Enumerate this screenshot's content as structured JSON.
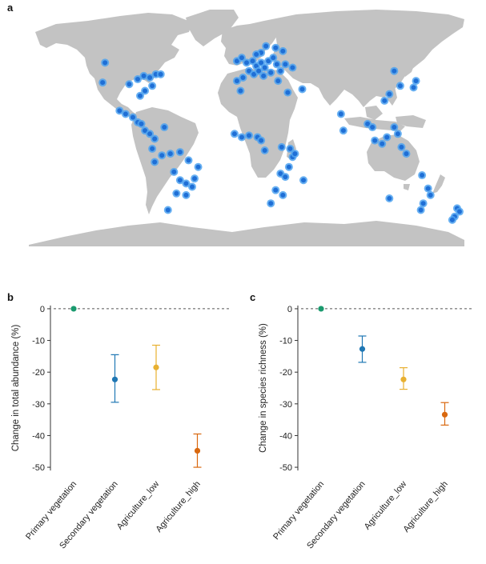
{
  "figure": {
    "panel_a_label": "a",
    "panel_b_label": "b",
    "panel_c_label": "c"
  },
  "colors": {
    "land": "#c3c3c3",
    "site_fill": "#1f6fd6",
    "site_halo": "#4fa3f0",
    "primary": "#1a9a6e",
    "secondary": "#1f77b4",
    "agri_low": "#e8b030",
    "agri_high": "#d9680f",
    "zero_line": "#555555"
  },
  "map": {
    "title": "",
    "sites": [
      [
        -117,
        51
      ],
      [
        -119,
        39
      ],
      [
        -97,
        38
      ],
      [
        -90,
        41
      ],
      [
        -85,
        43
      ],
      [
        -80,
        42
      ],
      [
        -75,
        44
      ],
      [
        -71,
        44
      ],
      [
        -78,
        37
      ],
      [
        -84,
        34
      ],
      [
        -88,
        31
      ],
      [
        -105,
        22
      ],
      [
        -100,
        20
      ],
      [
        -94,
        18
      ],
      [
        -90,
        15
      ],
      [
        -87,
        14
      ],
      [
        -84,
        10
      ],
      [
        -80,
        8
      ],
      [
        -76,
        5
      ],
      [
        -68,
        12
      ],
      [
        -78,
        -1
      ],
      [
        -76,
        -9
      ],
      [
        -70,
        -5
      ],
      [
        -63,
        -4
      ],
      [
        -55,
        -3
      ],
      [
        -48,
        -8
      ],
      [
        -40,
        -12
      ],
      [
        -60,
        -15
      ],
      [
        -55,
        -20
      ],
      [
        -50,
        -22
      ],
      [
        -45,
        -24
      ],
      [
        -58,
        -28
      ],
      [
        -65,
        -38
      ],
      [
        -50,
        -29
      ],
      [
        -43,
        -19
      ],
      [
        -8,
        52
      ],
      [
        -4,
        54
      ],
      [
        0,
        51
      ],
      [
        5,
        52
      ],
      [
        8,
        49
      ],
      [
        12,
        51
      ],
      [
        15,
        48
      ],
      [
        18,
        52
      ],
      [
        22,
        54
      ],
      [
        25,
        50
      ],
      [
        2,
        46
      ],
      [
        6,
        44
      ],
      [
        10,
        46
      ],
      [
        14,
        43
      ],
      [
        20,
        45
      ],
      [
        -3,
        42
      ],
      [
        -8,
        40
      ],
      [
        28,
        46
      ],
      [
        32,
        50
      ],
      [
        38,
        48
      ],
      [
        30,
        58
      ],
      [
        24,
        60
      ],
      [
        12,
        57
      ],
      [
        8,
        56
      ],
      [
        16,
        61
      ],
      [
        26,
        40
      ],
      [
        34,
        33
      ],
      [
        46,
        35
      ],
      [
        -5,
        34
      ],
      [
        -10,
        8
      ],
      [
        -4,
        6
      ],
      [
        2,
        7
      ],
      [
        9,
        6
      ],
      [
        12,
        4
      ],
      [
        15,
        -2
      ],
      [
        29,
        0
      ],
      [
        36,
        -1
      ],
      [
        38,
        -6
      ],
      [
        40,
        -4
      ],
      [
        35,
        -12
      ],
      [
        28,
        -16
      ],
      [
        32,
        -18
      ],
      [
        47,
        -20
      ],
      [
        24,
        -26
      ],
      [
        30,
        -29
      ],
      [
        20,
        -34
      ],
      [
        78,
        20
      ],
      [
        80,
        10
      ],
      [
        100,
        14
      ],
      [
        104,
        12
      ],
      [
        106,
        4
      ],
      [
        112,
        2
      ],
      [
        116,
        6
      ],
      [
        122,
        12
      ],
      [
        125,
        8
      ],
      [
        128,
        0
      ],
      [
        132,
        -4
      ],
      [
        114,
        28
      ],
      [
        118,
        32
      ],
      [
        127,
        37
      ],
      [
        138,
        36
      ],
      [
        140,
        40
      ],
      [
        122,
        46
      ],
      [
        145,
        -17
      ],
      [
        150,
        -25
      ],
      [
        152,
        -29
      ],
      [
        146,
        -34
      ],
      [
        144,
        -38
      ],
      [
        118,
        -31
      ],
      [
        174,
        -37
      ],
      [
        176,
        -39
      ],
      [
        172,
        -42
      ],
      [
        170,
        -44
      ]
    ]
  },
  "chart_data": [
    {
      "type": "scatter",
      "panel": "b",
      "title": "",
      "xlabel": "",
      "ylabel": "Change in total abundance (%)",
      "categories": [
        "Primary vegetation",
        "Secondary vegetation",
        "Agriculture_low",
        "Agriculture_high"
      ],
      "values": [
        0,
        -22.3,
        -18.5,
        -44.8
      ],
      "error_low": [
        0,
        -29.5,
        -25.5,
        -50
      ],
      "error_high": [
        0,
        -14.5,
        -11.5,
        -39.5
      ],
      "ylim": [
        -52,
        2
      ],
      "yticks": [
        "0",
        "-10",
        "-20",
        "-30",
        "-40",
        "-50"
      ],
      "reference_line": 0
    },
    {
      "type": "scatter",
      "panel": "c",
      "title": "",
      "xlabel": "",
      "ylabel": "Change in species richness (%)",
      "categories": [
        "Primary vegetation",
        "Secondary vegetation",
        "Agriculture_low",
        "Agriculture_high"
      ],
      "values": [
        0,
        -12.7,
        -22.3,
        -33.4
      ],
      "error_low": [
        0,
        -16.9,
        -25.4,
        -36.7
      ],
      "error_high": [
        0,
        -8.6,
        -18.6,
        -29.6
      ],
      "ylim": [
        -52,
        2
      ],
      "yticks": [
        "0",
        "-10",
        "-20",
        "-30",
        "-40",
        "-50"
      ],
      "reference_line": 0
    }
  ]
}
